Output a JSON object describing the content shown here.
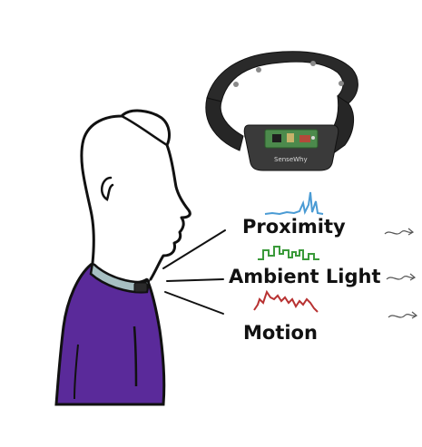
{
  "device": {
    "brand_text": "SenseWhy"
  },
  "sensors": [
    {
      "label": "Proximity",
      "color": "#4a9bd4"
    },
    {
      "label": "Ambient Light",
      "color": "#3a9a3a"
    },
    {
      "label": "Motion",
      "color": "#b83232"
    }
  ],
  "colors": {
    "shirt": "#5a2a9a",
    "collar": "#a7bfc2",
    "outline": "#111111",
    "strap": "#2a2a2a"
  },
  "icons": [
    "person-outline",
    "necklace-sensor-device",
    "squiggle-signal-icon"
  ]
}
